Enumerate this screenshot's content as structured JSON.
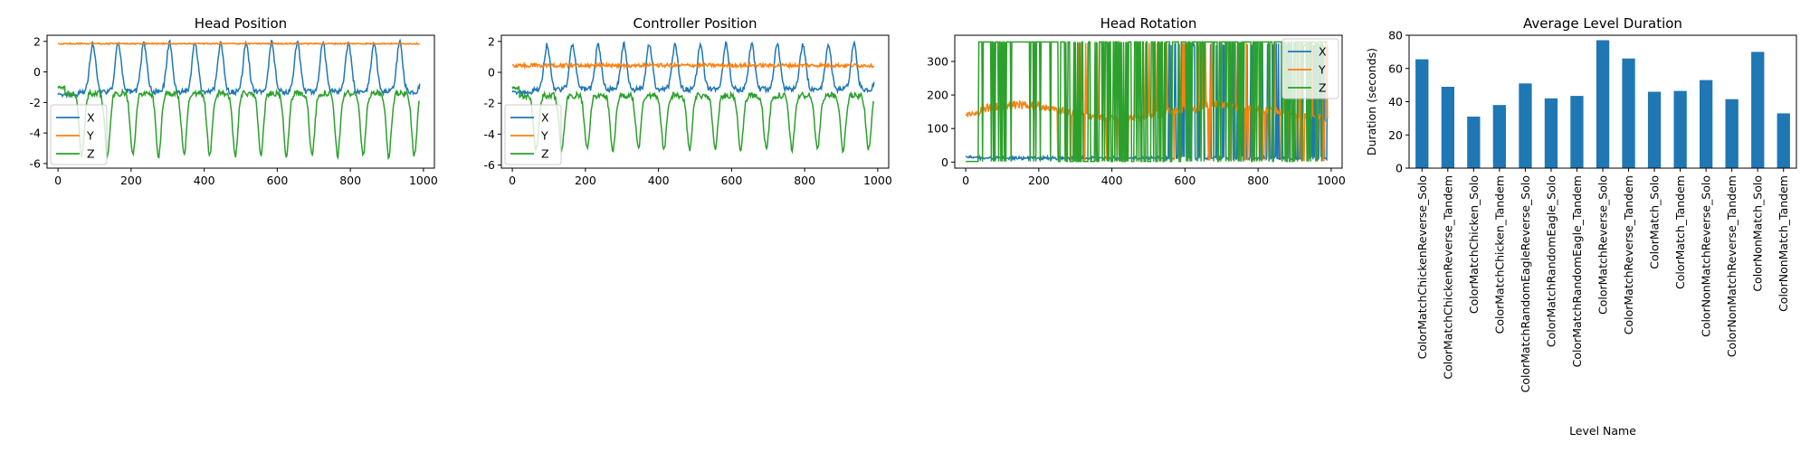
{
  "chart_data": [
    {
      "type": "line",
      "title": "Head Position",
      "xlim": [
        -30,
        1030
      ],
      "ylim": [
        -6.3,
        2.4
      ],
      "x_ticks": [
        0,
        200,
        400,
        600,
        800,
        1000
      ],
      "y_ticks": [
        2,
        0,
        -2,
        -4,
        -6
      ],
      "legend": {
        "position": "lower-left",
        "entries": [
          "X",
          "Y",
          "Z"
        ]
      },
      "series": [
        {
          "name": "X",
          "color": "#1f77b4",
          "pattern": "head_x",
          "x_range": [
            0,
            990
          ],
          "baseline": -1.3,
          "peak": 1.9,
          "period": 70
        },
        {
          "name": "Y",
          "color": "#ff7f0e",
          "pattern": "flat",
          "x_range": [
            0,
            990
          ],
          "value": 1.85,
          "noise": 0.04
        },
        {
          "name": "Z",
          "color": "#2ca02c",
          "pattern": "head_z",
          "x_range": [
            0,
            990
          ],
          "baseline": -1.4,
          "trough": -5.5,
          "period": 70
        }
      ],
      "grid": false
    },
    {
      "type": "line",
      "title": "Controller Position",
      "xlim": [
        -30,
        1030
      ],
      "ylim": [
        -6.2,
        2.4
      ],
      "x_ticks": [
        0,
        200,
        400,
        600,
        800,
        1000
      ],
      "y_ticks": [
        2,
        0,
        -2,
        -4,
        -6
      ],
      "legend": {
        "position": "lower-left",
        "entries": [
          "X",
          "Y",
          "Z"
        ]
      },
      "series": [
        {
          "name": "X",
          "color": "#1f77b4",
          "pattern": "head_x",
          "x_range": [
            0,
            990
          ],
          "baseline": -1.1,
          "peak": 1.8,
          "period": 70
        },
        {
          "name": "Y",
          "color": "#ff7f0e",
          "pattern": "flat",
          "x_range": [
            0,
            990
          ],
          "value": 0.45,
          "noise": 0.12
        },
        {
          "name": "Z",
          "color": "#2ca02c",
          "pattern": "head_z",
          "x_range": [
            0,
            990
          ],
          "baseline": -1.5,
          "trough": -5.0,
          "period": 70
        }
      ],
      "grid": false
    },
    {
      "type": "line",
      "title": "Head Rotation",
      "xlim": [
        -30,
        1030
      ],
      "ylim": [
        -18,
        378
      ],
      "x_ticks": [
        0,
        200,
        400,
        600,
        800,
        1000
      ],
      "y_ticks": [
        0,
        100,
        200,
        300
      ],
      "legend": {
        "position": "upper-right",
        "entries": [
          "X",
          "Y",
          "Z"
        ]
      },
      "series": [
        {
          "name": "X",
          "color": "#1f77b4",
          "pattern": "wrap",
          "x_range": [
            0,
            990
          ],
          "base": 12,
          "wrap_density": 0.35
        },
        {
          "name": "Y",
          "color": "#ff7f0e",
          "pattern": "wrap_drift",
          "x_range": [
            0,
            990
          ],
          "base": 150,
          "wrap_density": 0.2
        },
        {
          "name": "Z",
          "color": "#2ca02c",
          "pattern": "wrap_dense",
          "x_range": [
            0,
            990
          ],
          "base": 5,
          "wrap_density": 0.75
        }
      ],
      "grid": false
    },
    {
      "type": "bar",
      "title": "Average Level Duration",
      "xlabel": "Level Name",
      "ylabel": "Duration (seconds)",
      "ylim": [
        0,
        80
      ],
      "y_ticks": [
        0,
        20,
        40,
        60,
        80
      ],
      "color": "#1f77b4",
      "categories": [
        "ColorMatchChickenReverse_Solo",
        "ColorMatchChickenReverse_Tandem",
        "ColorMatchChicken_Solo",
        "ColorMatchChicken_Tandem",
        "ColorMatchRandomEagleReverse_Solo",
        "ColorMatchRandomEagle_Solo",
        "ColorMatchRandomEagle_Tandem",
        "ColorMatchReverse_Solo",
        "ColorMatchReverse_Tandem",
        "ColorMatch_Solo",
        "ColorMatch_Tandem",
        "ColorNonMatchReverse_Solo",
        "ColorNonMatchReverse_Tandem",
        "ColorNonMatch_Solo",
        "ColorNonMatch_Tandem"
      ],
      "values": [
        65.5,
        49,
        31,
        38,
        51,
        42,
        43.5,
        77,
        66,
        46,
        46.5,
        53,
        41.5,
        70,
        33
      ],
      "grid": false
    }
  ]
}
